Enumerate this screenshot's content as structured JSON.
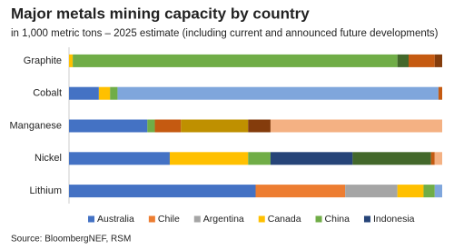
{
  "chart_data": {
    "type": "stacked-barh",
    "title": "Major metals mining capacity by country",
    "subtitle": "in 1,000 metric tons – 2025 estimate (including current and announced future developments)",
    "source": "Source: BloombergNEF, RSM",
    "categories": [
      "Graphite",
      "Cobalt",
      "Manganese",
      "Nickel",
      "Lithium"
    ],
    "xlim": [
      0,
      100
    ],
    "legend": "bottom",
    "series": [
      {
        "name": "Australia",
        "color": "#4472c4",
        "values": [
          0,
          8,
          21,
          27,
          50
        ]
      },
      {
        "name": "Chile",
        "color": "#ed7d31",
        "values": [
          0,
          0,
          0,
          0,
          24
        ]
      },
      {
        "name": "Argentina",
        "color": "#a5a5a5",
        "values": [
          0,
          0,
          0,
          0,
          14
        ]
      },
      {
        "name": "Canada",
        "color": "#ffc000",
        "values": [
          1,
          3,
          0,
          21,
          7
        ]
      },
      {
        "name": "China",
        "color": "#70ad47",
        "values": [
          87,
          2,
          2,
          6,
          3
        ]
      },
      {
        "name": "Indonesia",
        "color": "#264478",
        "values": [
          0,
          0,
          0,
          22,
          0
        ]
      },
      {
        "name": null,
        "color": "#43682b",
        "values": [
          3,
          0,
          0,
          21,
          0
        ]
      },
      {
        "name": null,
        "color": "#7fa6dc",
        "values": [
          0,
          86,
          0,
          0,
          2
        ]
      },
      {
        "name": null,
        "color": "#c55a11",
        "values": [
          7,
          1,
          7,
          1,
          0
        ]
      },
      {
        "name": null,
        "color": "#bf9000",
        "values": [
          0,
          0,
          18,
          0,
          0
        ]
      },
      {
        "name": null,
        "color": "#843c0c",
        "values": [
          2,
          0,
          6,
          0,
          0
        ]
      },
      {
        "name": null,
        "color": "#f4b183",
        "values": [
          0,
          0,
          46,
          2,
          0
        ]
      }
    ]
  }
}
